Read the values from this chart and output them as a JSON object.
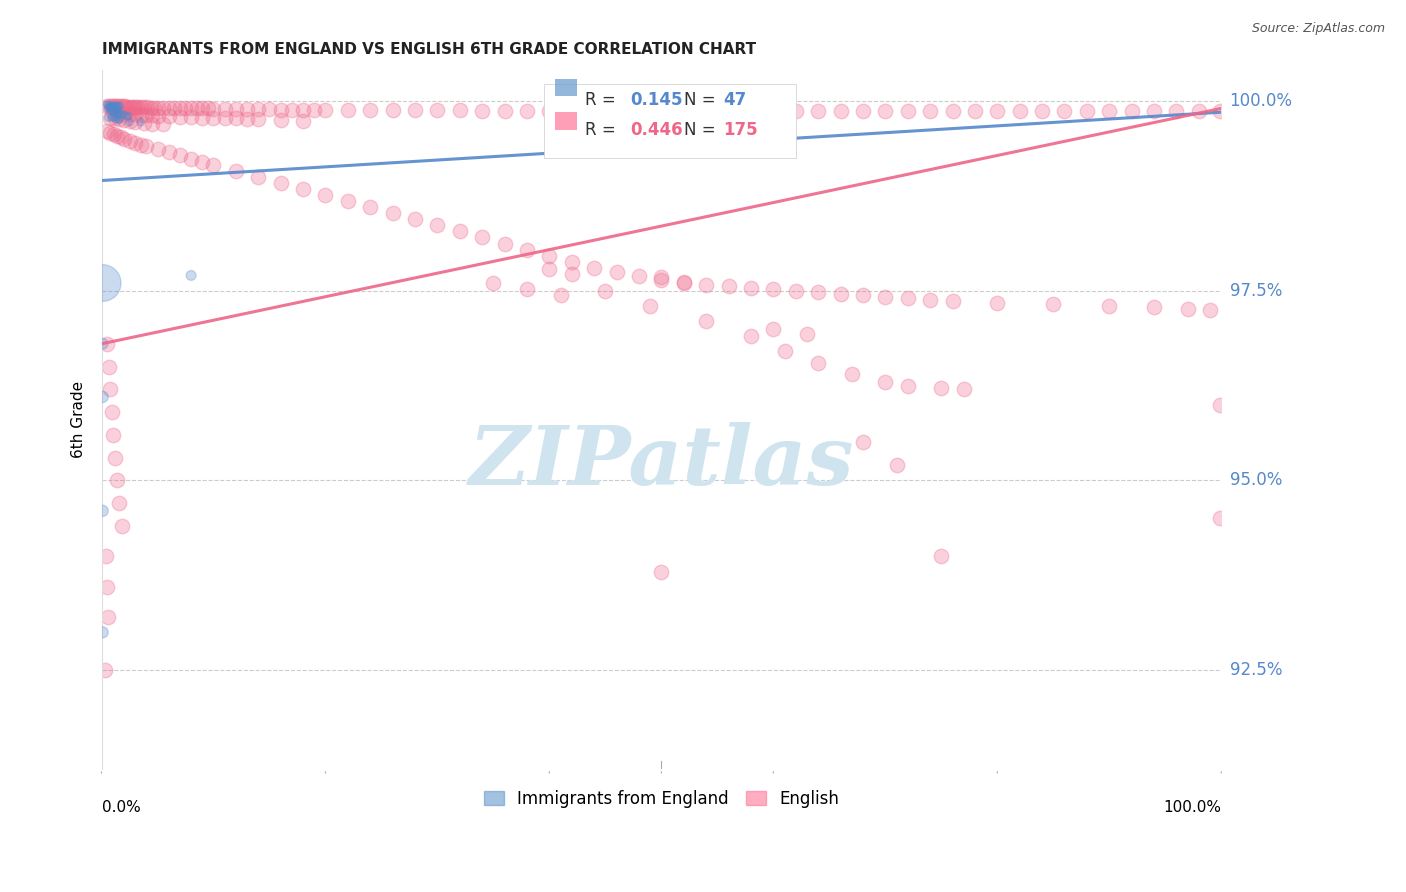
{
  "title": "IMMIGRANTS FROM ENGLAND VS ENGLISH 6TH GRADE CORRELATION CHART",
  "source": "Source: ZipAtlas.com",
  "ylabel": "6th Grade",
  "xlim": [
    0.0,
    1.0
  ],
  "ylim": [
    0.912,
    1.004
  ],
  "yticks": [
    0.925,
    0.95,
    0.975,
    1.0
  ],
  "ytick_labels": [
    "92.5%",
    "95.0%",
    "97.5%",
    "100.0%"
  ],
  "blue_color": "#5588cc",
  "pink_color": "#ee6688",
  "legend_color1": "#6699cc",
  "legend_color2": "#ff7799",
  "watermark_text": "ZIPatlas",
  "watermark_color": "#d0e4f0",
  "blue_line": [
    [
      0.0,
      0.9895
    ],
    [
      1.0,
      0.9985
    ]
  ],
  "pink_line": [
    [
      0.0,
      0.968
    ],
    [
      1.0,
      0.999
    ]
  ],
  "blue_scatter": [
    [
      0.005,
      0.9995
    ],
    [
      0.006,
      0.9994
    ],
    [
      0.007,
      0.9993
    ],
    [
      0.008,
      0.9993
    ],
    [
      0.009,
      0.9993
    ],
    [
      0.01,
      0.9993
    ],
    [
      0.011,
      0.9993
    ],
    [
      0.012,
      0.9993
    ],
    [
      0.013,
      0.9993
    ],
    [
      0.014,
      0.9993
    ],
    [
      0.015,
      0.9993
    ],
    [
      0.016,
      0.9993
    ],
    [
      0.006,
      0.999
    ],
    [
      0.007,
      0.999
    ],
    [
      0.008,
      0.999
    ],
    [
      0.009,
      0.999
    ],
    [
      0.01,
      0.999
    ],
    [
      0.011,
      0.999
    ],
    [
      0.012,
      0.999
    ],
    [
      0.013,
      0.9988
    ],
    [
      0.014,
      0.9988
    ],
    [
      0.015,
      0.9988
    ],
    [
      0.01,
      0.9985
    ],
    [
      0.011,
      0.9985
    ],
    [
      0.012,
      0.9985
    ],
    [
      0.013,
      0.9985
    ],
    [
      0.014,
      0.9982
    ],
    [
      0.015,
      0.9982
    ],
    [
      0.016,
      0.9982
    ],
    [
      0.018,
      0.9982
    ],
    [
      0.02,
      0.9982
    ],
    [
      0.022,
      0.998
    ],
    [
      0.024,
      0.998
    ],
    [
      0.006,
      0.9978
    ],
    [
      0.009,
      0.9978
    ],
    [
      0.011,
      0.9978
    ],
    [
      0.013,
      0.9976
    ],
    [
      0.016,
      0.9976
    ],
    [
      0.015,
      0.9975
    ],
    [
      0.025,
      0.9972
    ],
    [
      0.035,
      0.9972
    ],
    [
      0.001,
      0.976
    ],
    [
      0.001,
      0.968
    ],
    [
      0.08,
      0.977
    ],
    [
      0.001,
      0.961
    ],
    [
      0.001,
      0.946
    ],
    [
      0.001,
      0.93
    ]
  ],
  "blue_sizes": [
    30,
    30,
    30,
    30,
    30,
    30,
    30,
    30,
    30,
    30,
    30,
    30,
    30,
    30,
    30,
    30,
    30,
    30,
    30,
    30,
    30,
    30,
    30,
    30,
    30,
    30,
    30,
    30,
    30,
    30,
    30,
    30,
    30,
    30,
    30,
    30,
    30,
    30,
    30,
    30,
    30,
    700,
    60,
    50,
    65,
    65,
    65
  ],
  "pink_scatter": [
    [
      0.005,
      0.9993
    ],
    [
      0.007,
      0.9993
    ],
    [
      0.009,
      0.9993
    ],
    [
      0.011,
      0.9993
    ],
    [
      0.013,
      0.9993
    ],
    [
      0.015,
      0.9993
    ],
    [
      0.017,
      0.9993
    ],
    [
      0.019,
      0.9993
    ],
    [
      0.021,
      0.9993
    ],
    [
      0.023,
      0.9992
    ],
    [
      0.025,
      0.9992
    ],
    [
      0.027,
      0.9992
    ],
    [
      0.029,
      0.9992
    ],
    [
      0.031,
      0.9992
    ],
    [
      0.033,
      0.9992
    ],
    [
      0.035,
      0.9992
    ],
    [
      0.038,
      0.9992
    ],
    [
      0.041,
      0.9992
    ],
    [
      0.044,
      0.999
    ],
    [
      0.047,
      0.999
    ],
    [
      0.05,
      0.999
    ],
    [
      0.055,
      0.999
    ],
    [
      0.06,
      0.999
    ],
    [
      0.065,
      0.999
    ],
    [
      0.07,
      0.999
    ],
    [
      0.075,
      0.999
    ],
    [
      0.08,
      0.999
    ],
    [
      0.085,
      0.999
    ],
    [
      0.09,
      0.999
    ],
    [
      0.095,
      0.999
    ],
    [
      0.1,
      0.9989
    ],
    [
      0.11,
      0.9989
    ],
    [
      0.12,
      0.9989
    ],
    [
      0.13,
      0.9989
    ],
    [
      0.14,
      0.9989
    ],
    [
      0.15,
      0.9989
    ],
    [
      0.16,
      0.9988
    ],
    [
      0.17,
      0.9988
    ],
    [
      0.18,
      0.9988
    ],
    [
      0.19,
      0.9988
    ],
    [
      0.2,
      0.9988
    ],
    [
      0.22,
      0.9988
    ],
    [
      0.24,
      0.9988
    ],
    [
      0.26,
      0.9988
    ],
    [
      0.28,
      0.9988
    ],
    [
      0.3,
      0.9988
    ],
    [
      0.32,
      0.9988
    ],
    [
      0.34,
      0.9987
    ],
    [
      0.36,
      0.9987
    ],
    [
      0.38,
      0.9987
    ],
    [
      0.4,
      0.9987
    ],
    [
      0.42,
      0.9987
    ],
    [
      0.44,
      0.9987
    ],
    [
      0.46,
      0.9987
    ],
    [
      0.48,
      0.9987
    ],
    [
      0.5,
      0.9987
    ],
    [
      0.52,
      0.9987
    ],
    [
      0.54,
      0.9987
    ],
    [
      0.56,
      0.9987
    ],
    [
      0.58,
      0.9987
    ],
    [
      0.6,
      0.9987
    ],
    [
      0.62,
      0.9987
    ],
    [
      0.64,
      0.9987
    ],
    [
      0.66,
      0.9987
    ],
    [
      0.68,
      0.9987
    ],
    [
      0.7,
      0.9987
    ],
    [
      0.72,
      0.9987
    ],
    [
      0.74,
      0.9987
    ],
    [
      0.76,
      0.9987
    ],
    [
      0.78,
      0.9987
    ],
    [
      0.8,
      0.9987
    ],
    [
      0.82,
      0.9987
    ],
    [
      0.84,
      0.9987
    ],
    [
      0.86,
      0.9987
    ],
    [
      0.88,
      0.9987
    ],
    [
      0.9,
      0.9986
    ],
    [
      0.92,
      0.9986
    ],
    [
      0.94,
      0.9986
    ],
    [
      0.96,
      0.9986
    ],
    [
      0.98,
      0.9986
    ],
    [
      0.999,
      0.9986
    ],
    [
      0.01,
      0.9985
    ],
    [
      0.015,
      0.9984
    ],
    [
      0.02,
      0.9983
    ],
    [
      0.025,
      0.9982
    ],
    [
      0.03,
      0.9982
    ],
    [
      0.035,
      0.9981
    ],
    [
      0.04,
      0.9981
    ],
    [
      0.045,
      0.9981
    ],
    [
      0.05,
      0.998
    ],
    [
      0.06,
      0.998
    ],
    [
      0.07,
      0.9979
    ],
    [
      0.08,
      0.9979
    ],
    [
      0.09,
      0.9978
    ],
    [
      0.1,
      0.9978
    ],
    [
      0.11,
      0.9977
    ],
    [
      0.12,
      0.9977
    ],
    [
      0.13,
      0.9976
    ],
    [
      0.14,
      0.9976
    ],
    [
      0.16,
      0.9975
    ],
    [
      0.18,
      0.9974
    ],
    [
      0.008,
      0.9978
    ],
    [
      0.012,
      0.9977
    ],
    [
      0.016,
      0.9976
    ],
    [
      0.02,
      0.9975
    ],
    [
      0.025,
      0.9974
    ],
    [
      0.03,
      0.9972
    ],
    [
      0.038,
      0.9971
    ],
    [
      0.045,
      0.997
    ],
    [
      0.055,
      0.9969
    ],
    [
      0.005,
      0.996
    ],
    [
      0.008,
      0.9958
    ],
    [
      0.011,
      0.9956
    ],
    [
      0.014,
      0.9954
    ],
    [
      0.017,
      0.9952
    ],
    [
      0.02,
      0.995
    ],
    [
      0.025,
      0.9947
    ],
    [
      0.03,
      0.9945
    ],
    [
      0.035,
      0.9942
    ],
    [
      0.04,
      0.994
    ],
    [
      0.05,
      0.9936
    ],
    [
      0.06,
      0.9932
    ],
    [
      0.07,
      0.9928
    ],
    [
      0.08,
      0.9924
    ],
    [
      0.09,
      0.992
    ],
    [
      0.1,
      0.9916
    ],
    [
      0.12,
      0.9908
    ],
    [
      0.14,
      0.99
    ],
    [
      0.16,
      0.9892
    ],
    [
      0.18,
      0.9884
    ],
    [
      0.2,
      0.9876
    ],
    [
      0.22,
      0.9868
    ],
    [
      0.24,
      0.986
    ],
    [
      0.26,
      0.9852
    ],
    [
      0.28,
      0.9844
    ],
    [
      0.3,
      0.9836
    ],
    [
      0.32,
      0.9828
    ],
    [
      0.34,
      0.982
    ],
    [
      0.36,
      0.9812
    ],
    [
      0.38,
      0.9804
    ],
    [
      0.4,
      0.9796
    ],
    [
      0.42,
      0.9788
    ],
    [
      0.44,
      0.978
    ],
    [
      0.46,
      0.9774
    ],
    [
      0.48,
      0.9769
    ],
    [
      0.5,
      0.9764
    ],
    [
      0.52,
      0.976
    ],
    [
      0.54,
      0.9758
    ],
    [
      0.56,
      0.9756
    ],
    [
      0.58,
      0.9754
    ],
    [
      0.6,
      0.9752
    ],
    [
      0.62,
      0.975
    ],
    [
      0.64,
      0.9748
    ],
    [
      0.66,
      0.9746
    ],
    [
      0.68,
      0.9744
    ],
    [
      0.7,
      0.9742
    ],
    [
      0.72,
      0.974
    ],
    [
      0.74,
      0.9738
    ],
    [
      0.76,
      0.9736
    ],
    [
      0.8,
      0.9734
    ],
    [
      0.85,
      0.9732
    ],
    [
      0.9,
      0.973
    ],
    [
      0.94,
      0.9728
    ],
    [
      0.97,
      0.9726
    ],
    [
      0.99,
      0.9724
    ],
    [
      0.999,
      0.945
    ],
    [
      0.005,
      0.968
    ],
    [
      0.007,
      0.965
    ],
    [
      0.008,
      0.962
    ],
    [
      0.009,
      0.959
    ],
    [
      0.01,
      0.956
    ],
    [
      0.012,
      0.953
    ],
    [
      0.014,
      0.95
    ],
    [
      0.016,
      0.947
    ],
    [
      0.018,
      0.944
    ],
    [
      0.004,
      0.94
    ],
    [
      0.005,
      0.936
    ],
    [
      0.006,
      0.932
    ],
    [
      0.003,
      0.925
    ],
    [
      0.5,
      0.938
    ],
    [
      0.75,
      0.94
    ],
    [
      0.45,
      0.975
    ],
    [
      0.49,
      0.973
    ],
    [
      0.54,
      0.971
    ],
    [
      0.58,
      0.969
    ],
    [
      0.61,
      0.967
    ],
    [
      0.64,
      0.9655
    ],
    [
      0.67,
      0.964
    ],
    [
      0.7,
      0.963
    ],
    [
      0.72,
      0.9625
    ],
    [
      0.75,
      0.9622
    ],
    [
      0.77,
      0.962
    ],
    [
      0.999,
      0.96
    ],
    [
      0.35,
      0.976
    ],
    [
      0.38,
      0.9752
    ],
    [
      0.41,
      0.9744
    ],
    [
      0.5,
      0.9768
    ],
    [
      0.52,
      0.9762
    ],
    [
      0.4,
      0.9778
    ],
    [
      0.42,
      0.9772
    ],
    [
      0.6,
      0.97
    ],
    [
      0.63,
      0.9693
    ],
    [
      0.68,
      0.955
    ],
    [
      0.71,
      0.952
    ]
  ]
}
